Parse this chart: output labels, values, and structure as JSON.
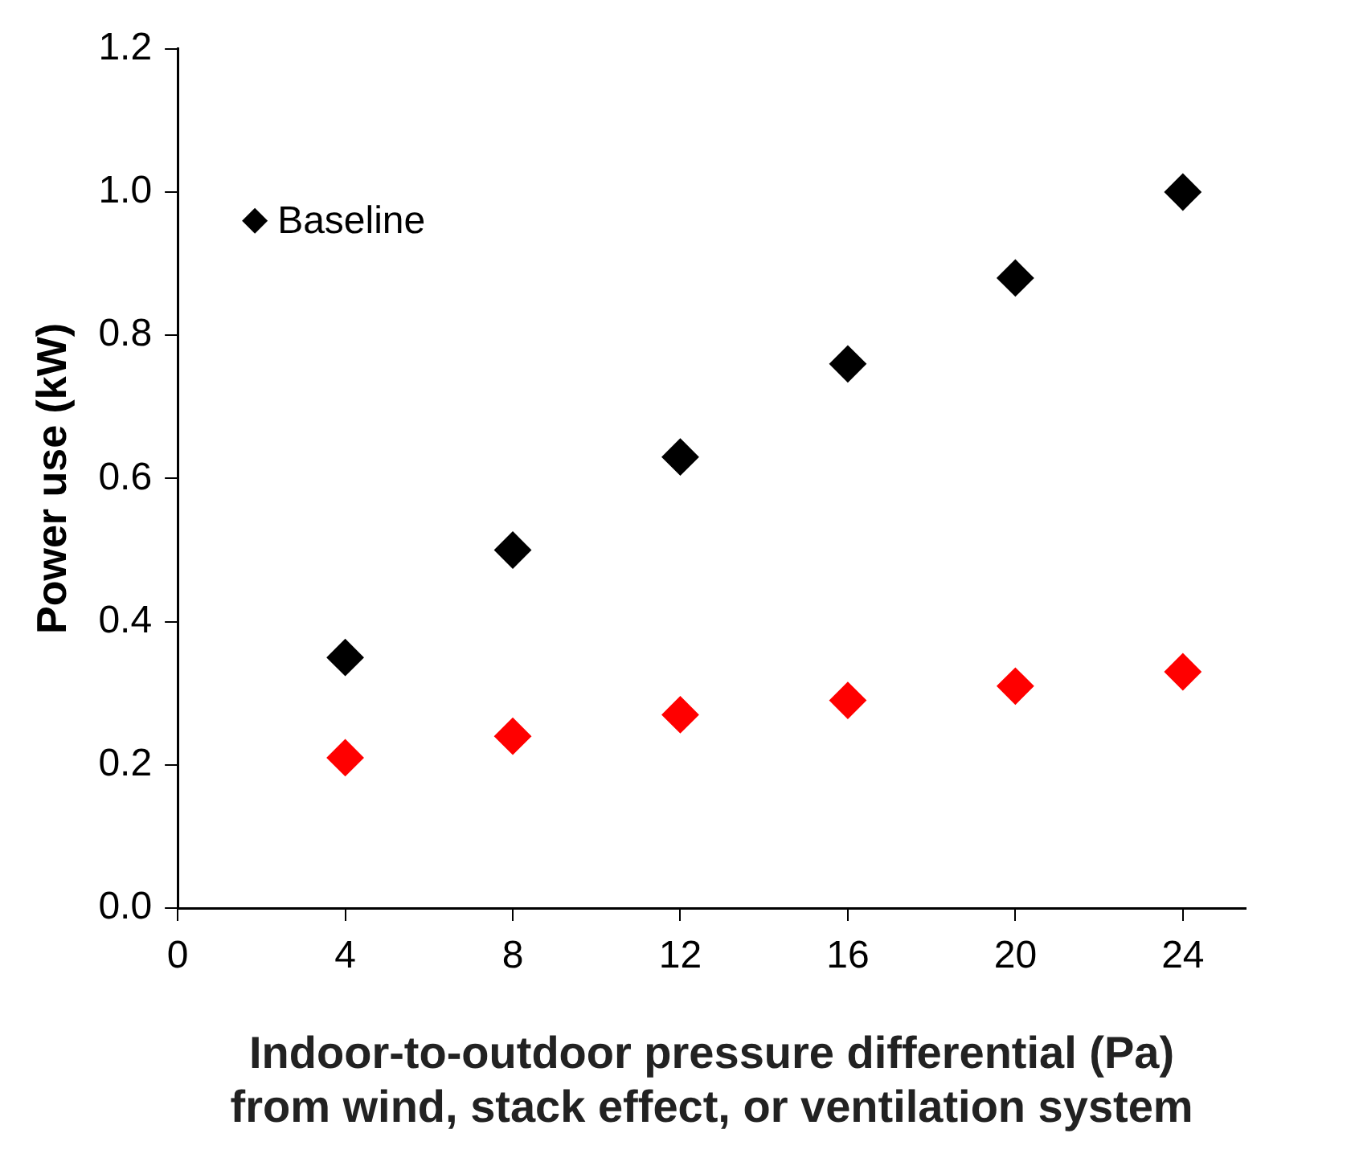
{
  "chart_data": {
    "type": "scatter",
    "xlabel": "Indoor-to-outdoor pressure differential (Pa)\nfrom wind, stack effect, or ventilation system",
    "ylabel": "Power use (kW)",
    "x": [
      4,
      8,
      12,
      16,
      20,
      24
    ],
    "series": [
      {
        "color": "#ff0000",
        "values": [
          0.21,
          0.24,
          0.27,
          0.29,
          0.31,
          0.33
        ]
      },
      {
        "name": "Baseline",
        "color": "#000000",
        "values": [
          0.35,
          0.5,
          0.63,
          0.76,
          0.88,
          1.0
        ]
      }
    ],
    "xlim": [
      0,
      25.5
    ],
    "xticks": [
      0,
      4,
      8,
      12,
      16,
      20,
      24
    ],
    "ylim": [
      0,
      1.2
    ],
    "yticks": [
      {
        "value": 0,
        "label": "0.0"
      },
      {
        "value": 0.2,
        "label": "0.2"
      },
      {
        "value": 0.4,
        "label": "0.4"
      },
      {
        "value": 0.6,
        "label": "0.6"
      },
      {
        "value": 0.8,
        "label": "0.8"
      },
      {
        "value": 1,
        "label": "1.0"
      },
      {
        "value": 1.2,
        "label": "1.2"
      }
    ],
    "grid": false,
    "legend": "top left",
    "marker": "diamond"
  }
}
